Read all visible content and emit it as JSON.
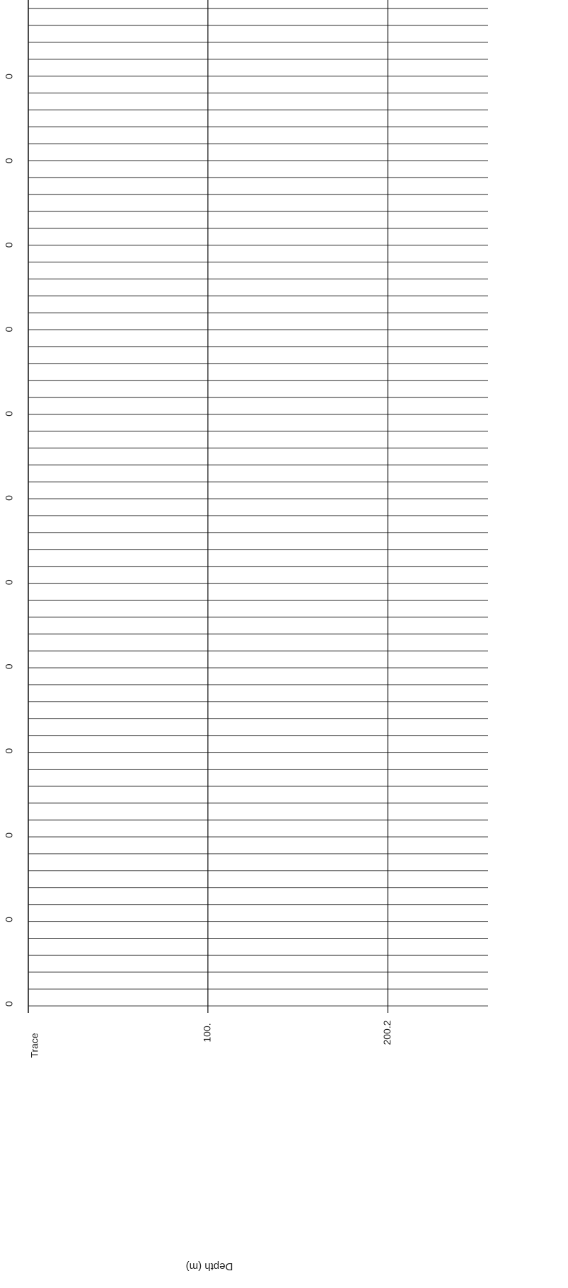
{
  "chart_data": {
    "type": "wiggle",
    "xlabel": "Depth (m)",
    "ylabel": "Trace",
    "xlim": [
      0,
      256
    ],
    "xticks": [
      {
        "value": 100,
        "label": "100."
      },
      {
        "value": 200.2,
        "label": "200.2"
      }
    ],
    "trace_labels": [
      "0",
      "0",
      "0",
      "0",
      "0",
      "0",
      "0",
      "0",
      "0",
      "0",
      "0",
      "0"
    ],
    "grid": true
  }
}
